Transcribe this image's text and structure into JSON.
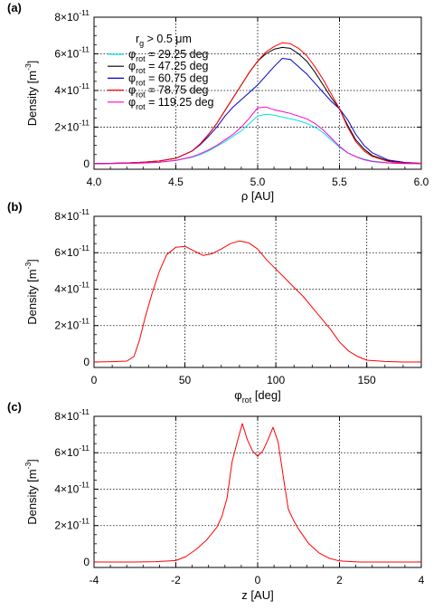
{
  "chart_data": [
    {
      "panel": "(a)",
      "type": "line",
      "title": "",
      "xlabel": "ρ [AU]",
      "ylabel": "Density [m",
      "ylabel_sup": "-3",
      "xlim": [
        4.0,
        6.0
      ],
      "ylim": [
        -0.3,
        8.0
      ],
      "y_unit_exponent": "-11",
      "x_ticks": [
        "4.0",
        "4.5",
        "5.0",
        "5.5",
        "6.0"
      ],
      "y_ticks": [
        "0",
        "2×10",
        "4×10",
        "6×10",
        "8×10"
      ],
      "grid": "dotted at x = 4.5, 5.0, 5.5 and y = 2, 4, 6",
      "legend": {
        "placement": "top-left",
        "header": "r",
        "header_sub": "g",
        "header_rest": " > 0.5 μm",
        "entry_prefix": "φ",
        "entry_sub": "rot",
        "entries": [
          " = 29.25 deg",
          " = 47.25 deg",
          " = 60.75 deg",
          " = 78.75 deg",
          " = 119.25 deg"
        ]
      },
      "x": [
        4.0,
        4.1,
        4.2,
        4.3,
        4.4,
        4.5,
        4.6,
        4.65,
        4.7,
        4.75,
        4.8,
        4.85,
        4.9,
        4.95,
        5.0,
        5.05,
        5.1,
        5.15,
        5.2,
        5.25,
        5.3,
        5.35,
        5.4,
        5.45,
        5.5,
        5.55,
        5.6,
        5.65,
        5.7,
        5.8,
        5.9,
        6.0
      ],
      "series": [
        {
          "color": "#00e5e5",
          "values": [
            0.0,
            0.01,
            0.02,
            0.04,
            0.08,
            0.18,
            0.35,
            0.5,
            0.7,
            0.95,
            1.2,
            1.5,
            1.8,
            2.2,
            2.6,
            2.7,
            2.65,
            2.55,
            2.45,
            2.35,
            2.2,
            2.0,
            1.7,
            1.3,
            0.9,
            0.6,
            0.4,
            0.25,
            0.15,
            0.05,
            0.02,
            0.0
          ]
        },
        {
          "color": "#000000",
          "values": [
            0.0,
            0.02,
            0.04,
            0.08,
            0.15,
            0.3,
            0.7,
            1.1,
            1.6,
            2.2,
            2.9,
            3.6,
            4.3,
            5.0,
            5.6,
            6.0,
            6.25,
            6.35,
            6.3,
            6.0,
            5.6,
            5.0,
            4.3,
            3.6,
            3.0,
            2.1,
            1.3,
            0.8,
            0.45,
            0.15,
            0.05,
            0.02
          ]
        },
        {
          "color": "#0000cc",
          "values": [
            0.0,
            0.02,
            0.04,
            0.08,
            0.15,
            0.3,
            0.7,
            1.05,
            1.5,
            2.0,
            2.6,
            3.1,
            3.5,
            3.9,
            4.3,
            4.8,
            5.3,
            5.75,
            5.7,
            5.3,
            4.9,
            4.4,
            3.9,
            3.4,
            3.0,
            2.4,
            1.6,
            1.0,
            0.6,
            0.2,
            0.07,
            0.02
          ]
        },
        {
          "color": "#ff0000",
          "values": [
            0.0,
            0.02,
            0.04,
            0.08,
            0.15,
            0.3,
            0.7,
            1.1,
            1.6,
            2.2,
            2.9,
            3.6,
            4.3,
            5.0,
            5.6,
            6.1,
            6.4,
            6.6,
            6.55,
            6.3,
            5.9,
            5.3,
            4.6,
            3.8,
            3.0,
            2.0,
            1.2,
            0.7,
            0.4,
            0.12,
            0.04,
            0.02
          ]
        },
        {
          "color": "#ff00cc",
          "values": [
            0.0,
            0.01,
            0.02,
            0.04,
            0.08,
            0.18,
            0.38,
            0.55,
            0.75,
            1.0,
            1.3,
            1.6,
            2.0,
            2.5,
            3.05,
            3.1,
            2.95,
            2.85,
            2.75,
            2.6,
            2.45,
            2.2,
            1.85,
            1.4,
            0.95,
            0.6,
            0.38,
            0.22,
            0.12,
            0.04,
            0.01,
            0.0
          ]
        }
      ]
    },
    {
      "panel": "(b)",
      "type": "line",
      "title": "",
      "xlabel": "φ",
      "xlabel_sub": "rot",
      "xlabel_rest": " [deg]",
      "ylabel": "Density [m",
      "ylabel_sup": "-3",
      "xlim": [
        0,
        180
      ],
      "ylim": [
        -0.3,
        8.0
      ],
      "y_unit_exponent": "-11",
      "x_ticks": [
        "0",
        "50",
        "100",
        "150"
      ],
      "y_ticks": [
        "0",
        "2×10",
        "4×10",
        "6×10",
        "8×10"
      ],
      "grid": "dotted at x = 50, 100, 150 and y = 2, 4, 6",
      "x": [
        0,
        10,
        18,
        22,
        25,
        28,
        32,
        36,
        40,
        45,
        50,
        55,
        60,
        65,
        70,
        75,
        80,
        85,
        90,
        95,
        100,
        105,
        110,
        115,
        120,
        125,
        130,
        135,
        140,
        145,
        150,
        160,
        170,
        180
      ],
      "series": [
        {
          "color": "#ff0000",
          "values": [
            0.0,
            0.02,
            0.05,
            0.3,
            1.2,
            2.4,
            3.8,
            5.0,
            5.9,
            6.3,
            6.35,
            6.1,
            5.85,
            5.95,
            6.2,
            6.5,
            6.65,
            6.55,
            6.2,
            5.6,
            5.1,
            4.6,
            4.1,
            3.6,
            3.0,
            2.4,
            1.8,
            1.1,
            0.6,
            0.3,
            0.1,
            0.03,
            0.0,
            0.0
          ]
        }
      ]
    },
    {
      "panel": "(c)",
      "type": "line",
      "title": "",
      "xlabel": "z [AU]",
      "ylabel": "Density [m",
      "ylabel_sup": "-3",
      "xlim": [
        -4,
        4
      ],
      "ylim": [
        -0.3,
        8.0
      ],
      "y_unit_exponent": "-11",
      "x_ticks": [
        "-4",
        "-2",
        "0",
        "2",
        "4"
      ],
      "y_ticks": [
        "0",
        "2×10",
        "4×10",
        "6×10",
        "8×10"
      ],
      "grid": "dotted at x = -2, 0, 2 and y = 2, 4, 6",
      "x": [
        -4.0,
        -3.0,
        -2.5,
        -2.0,
        -1.75,
        -1.5,
        -1.25,
        -1.0,
        -0.875,
        -0.75,
        -0.625,
        -0.5,
        -0.375,
        -0.25,
        -0.125,
        0.0,
        0.125,
        0.25,
        0.375,
        0.5,
        0.625,
        0.75,
        0.875,
        1.0,
        1.25,
        1.5,
        1.75,
        2.0,
        2.5,
        3.0,
        4.0
      ],
      "series": [
        {
          "color": "#ff0000",
          "values": [
            0.0,
            0.0,
            0.02,
            0.08,
            0.3,
            0.7,
            1.2,
            1.9,
            2.5,
            3.5,
            5.5,
            6.6,
            7.6,
            6.7,
            6.1,
            5.8,
            6.1,
            6.7,
            7.4,
            6.6,
            4.7,
            2.9,
            2.3,
            1.8,
            1.0,
            0.5,
            0.2,
            0.06,
            0.0,
            0.0,
            0.0
          ]
        }
      ]
    }
  ]
}
